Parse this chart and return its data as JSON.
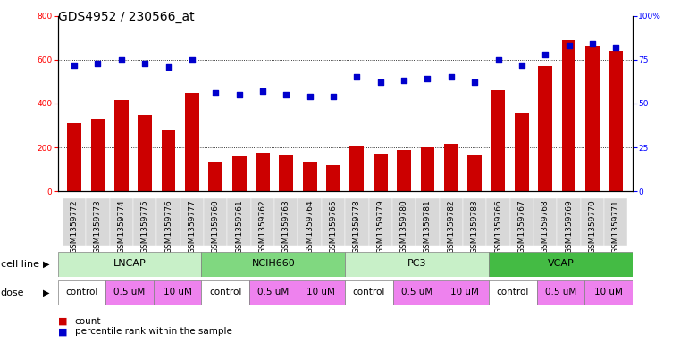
{
  "title": "GDS4952 / 230566_at",
  "samples": [
    "GSM1359772",
    "GSM1359773",
    "GSM1359774",
    "GSM1359775",
    "GSM1359776",
    "GSM1359777",
    "GSM1359760",
    "GSM1359761",
    "GSM1359762",
    "GSM1359763",
    "GSM1359764",
    "GSM1359765",
    "GSM1359778",
    "GSM1359779",
    "GSM1359780",
    "GSM1359781",
    "GSM1359782",
    "GSM1359783",
    "GSM1359766",
    "GSM1359767",
    "GSM1359768",
    "GSM1359769",
    "GSM1359770",
    "GSM1359771"
  ],
  "counts": [
    310,
    330,
    415,
    345,
    280,
    450,
    135,
    160,
    175,
    165,
    135,
    120,
    205,
    170,
    190,
    200,
    215,
    165,
    460,
    355,
    570,
    690,
    660,
    640
  ],
  "percentiles": [
    72,
    73,
    75,
    73,
    71,
    75,
    56,
    55,
    57,
    55,
    54,
    54,
    65,
    62,
    63,
    64,
    65,
    62,
    75,
    72,
    78,
    83,
    84,
    82
  ],
  "cell_lines": [
    {
      "label": "LNCAP",
      "start": 0,
      "end": 6,
      "color": "#c8f0c8"
    },
    {
      "label": "NCIH660",
      "start": 6,
      "end": 12,
      "color": "#80d880"
    },
    {
      "label": "PC3",
      "start": 12,
      "end": 18,
      "color": "#c8f0c8"
    },
    {
      "label": "VCAP",
      "start": 18,
      "end": 24,
      "color": "#44bb44"
    }
  ],
  "doses": [
    {
      "label": "control",
      "start": 0,
      "end": 2,
      "color": "#ffffff"
    },
    {
      "label": "0.5 uM",
      "start": 2,
      "end": 4,
      "color": "#ee82ee"
    },
    {
      "label": "10 uM",
      "start": 4,
      "end": 6,
      "color": "#ee82ee"
    },
    {
      "label": "control",
      "start": 6,
      "end": 8,
      "color": "#ffffff"
    },
    {
      "label": "0.5 uM",
      "start": 8,
      "end": 10,
      "color": "#ee82ee"
    },
    {
      "label": "10 uM",
      "start": 10,
      "end": 12,
      "color": "#ee82ee"
    },
    {
      "label": "control",
      "start": 12,
      "end": 14,
      "color": "#ffffff"
    },
    {
      "label": "0.5 uM",
      "start": 14,
      "end": 16,
      "color": "#ee82ee"
    },
    {
      "label": "10 uM",
      "start": 16,
      "end": 18,
      "color": "#ee82ee"
    },
    {
      "label": "control",
      "start": 18,
      "end": 20,
      "color": "#ffffff"
    },
    {
      "label": "0.5 uM",
      "start": 20,
      "end": 22,
      "color": "#ee82ee"
    },
    {
      "label": "10 uM",
      "start": 22,
      "end": 24,
      "color": "#ee82ee"
    }
  ],
  "bar_color": "#CC0000",
  "dot_color": "#0000CC",
  "background_color": "#ffffff",
  "plot_bg_color": "#ffffff",
  "tick_bg_color": "#d8d8d8",
  "ylim_left": [
    0,
    800
  ],
  "ylim_right": [
    0,
    100
  ],
  "yticks_left": [
    0,
    200,
    400,
    600,
    800
  ],
  "yticks_right": [
    0,
    25,
    50,
    75,
    100
  ],
  "grid_lines": [
    200,
    400,
    600
  ],
  "title_fontsize": 10,
  "tick_fontsize": 6.5,
  "label_fontsize": 8
}
